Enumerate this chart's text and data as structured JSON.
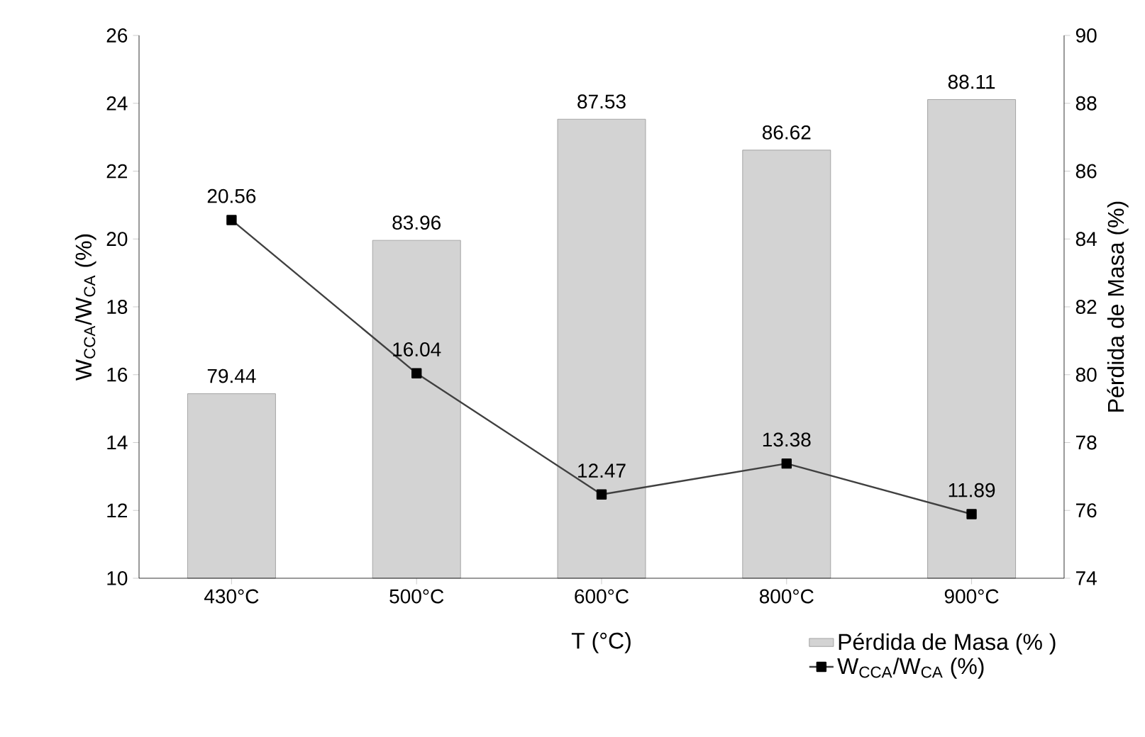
{
  "chart_data": {
    "type": "bar",
    "xlabel": "T (°C)",
    "ylabel": "W$_{CCA}$/W$_{CA}$ (%)",
    "y2label": "Pérdida de Masa (%)",
    "categories": [
      "430°C",
      "500°C",
      "600°C",
      "800°C",
      "900°C"
    ],
    "ylim": [
      10,
      26
    ],
    "yticks": [
      10,
      12,
      14,
      16,
      18,
      20,
      22,
      24,
      26
    ],
    "y2lim": [
      74,
      90
    ],
    "y2ticks": [
      74,
      76,
      78,
      80,
      82,
      84,
      86,
      88,
      90
    ],
    "legend": "bottom right",
    "data_labels": true,
    "marker": "square",
    "series": [
      {
        "name": "Pérdida de Masa (% )",
        "axis": "y2",
        "color": "#d3d3d3",
        "values": [
          79.44,
          83.96,
          87.53,
          86.62,
          88.11
        ]
      },
      {
        "name": "W$_{CCA}$/W$_{CA}$ (%)",
        "type": "line",
        "axis": "y",
        "color": "#404040",
        "values": [
          20.56,
          16.04,
          12.47,
          13.38,
          11.89
        ]
      }
    ]
  }
}
